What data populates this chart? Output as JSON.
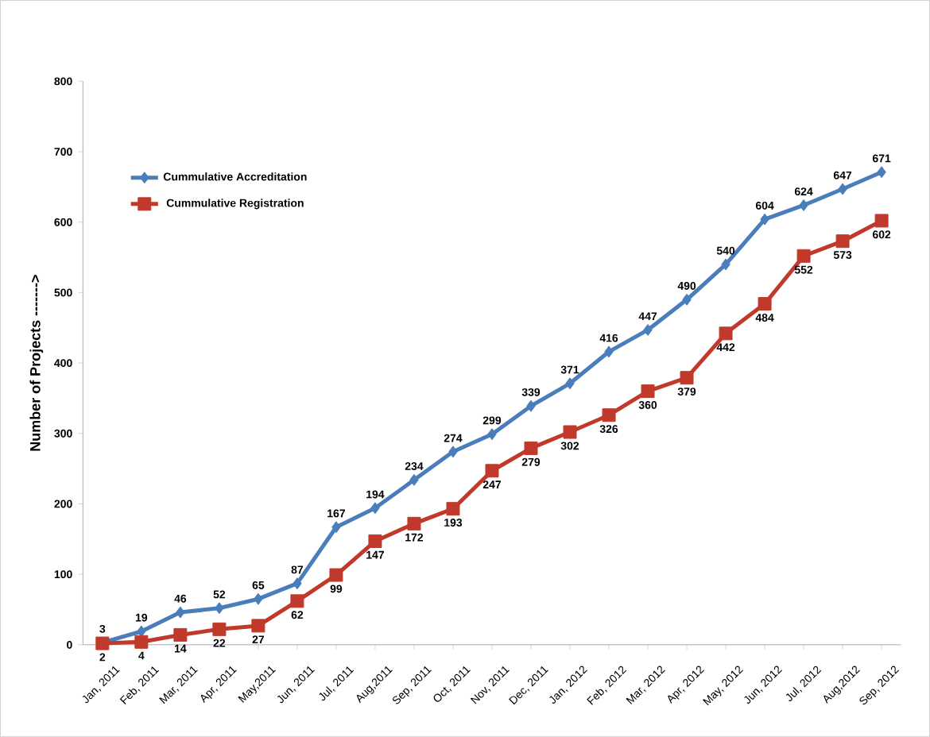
{
  "chart_data": {
    "type": "line",
    "ylabel": "Number of Projects ------->",
    "categories": [
      "Jan, 2011",
      "Feb, 2011",
      "Mar, 2011",
      "Apr, 2011",
      "May,2011",
      "Jun, 2011",
      "Jul, 2011",
      "Aug,2011",
      "Sep, 2011",
      "Oct, 2011",
      "Nov, 2011",
      "Dec, 2011",
      "Jan, 2012",
      "Feb, 2012",
      "Mar, 2012",
      "Apr, 2012",
      "May, 2012",
      "Jun, 2012",
      "Jul, 2012",
      "Aug,2012",
      "Sep, 2012"
    ],
    "series": [
      {
        "name": "Cummulative Accreditation",
        "color": "#4a7ebb",
        "marker": "diamond",
        "values": [
          3,
          19,
          46,
          52,
          65,
          87,
          167,
          194,
          234,
          274,
          299,
          339,
          371,
          416,
          447,
          490,
          540,
          604,
          624,
          647,
          671
        ]
      },
      {
        "name": "Cummulative Registration",
        "color": "#c0392b",
        "marker": "square",
        "values": [
          2,
          4,
          14,
          22,
          27,
          62,
          99,
          147,
          172,
          193,
          247,
          279,
          302,
          326,
          360,
          379,
          442,
          484,
          552,
          573,
          602
        ]
      }
    ],
    "ylim": [
      0,
      800
    ],
    "yticks": [
      0,
      100,
      200,
      300,
      400,
      500,
      600,
      700,
      800
    ],
    "data_labels": true,
    "legend": "top left",
    "grid": false
  }
}
